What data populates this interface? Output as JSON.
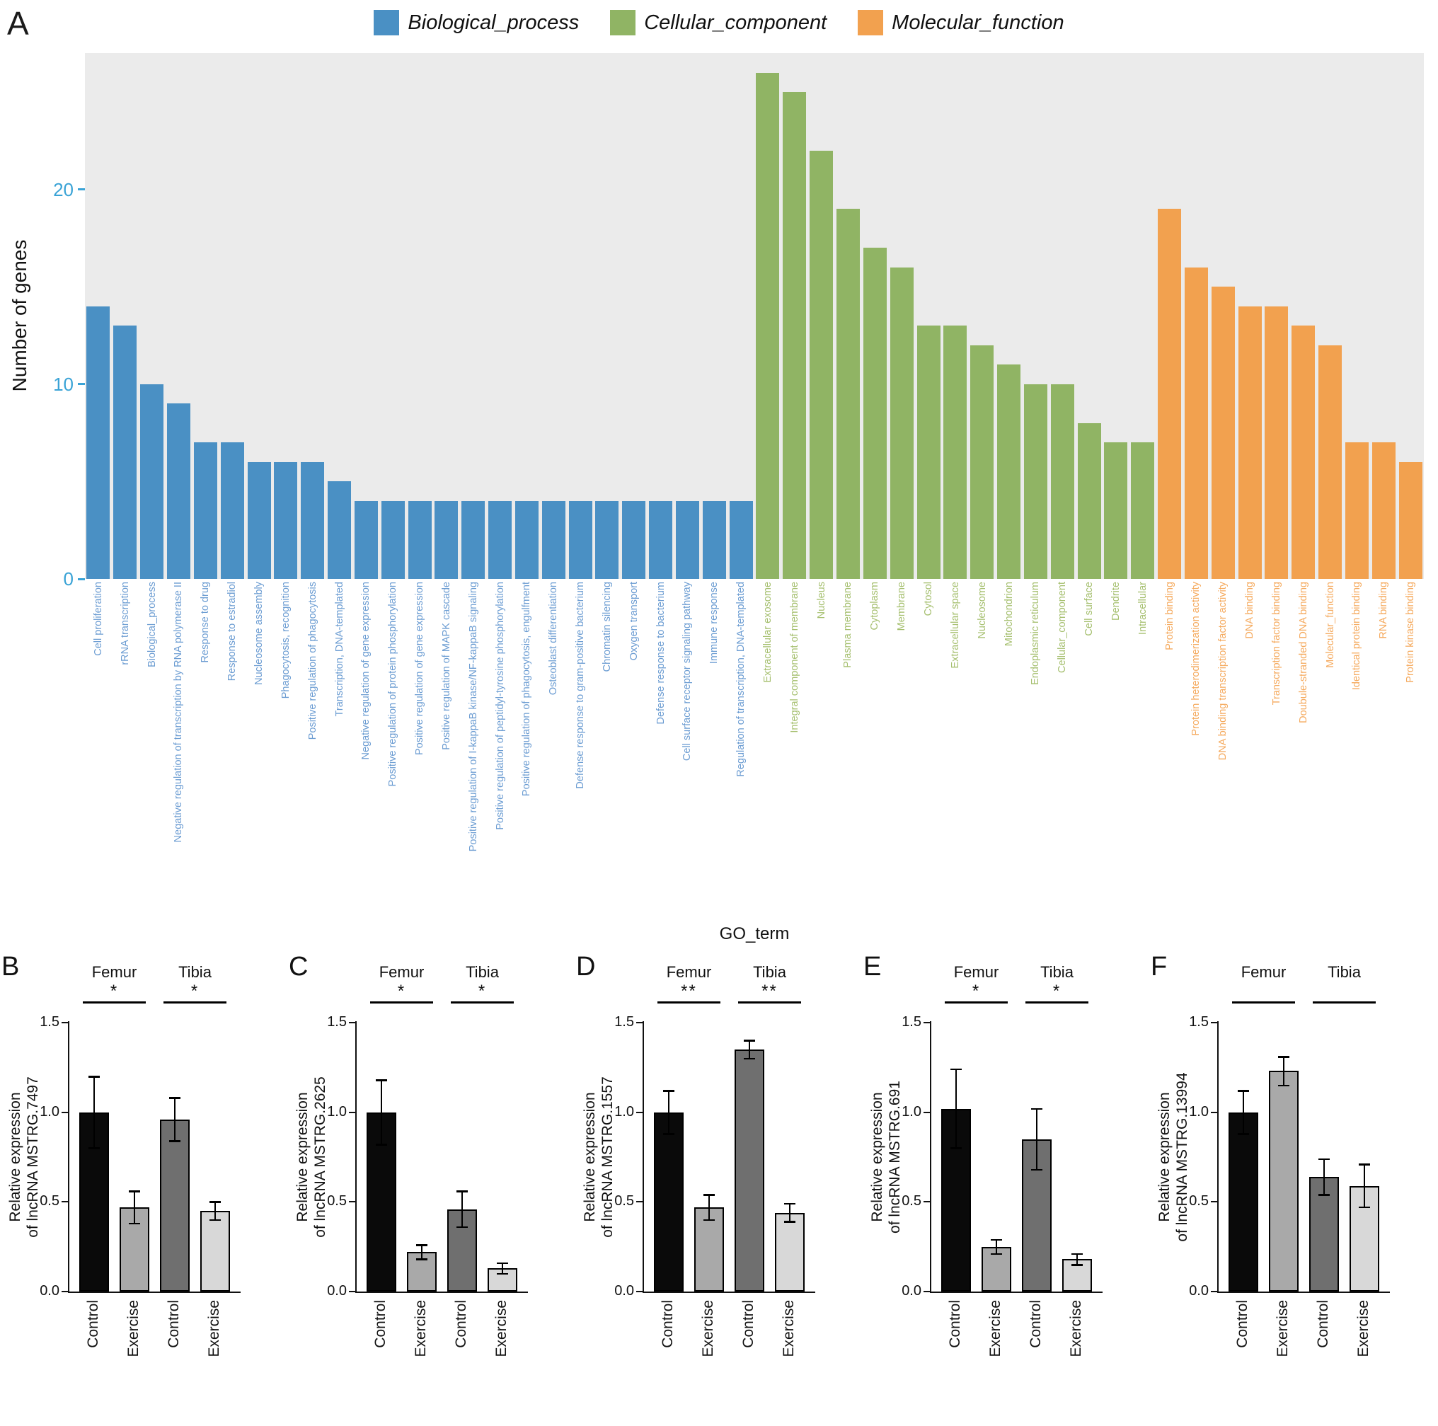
{
  "chart_data": [
    {
      "type": "bar",
      "panel_letter": "A",
      "ylabel": "Number of genes",
      "xlabel": "GO_term",
      "ylim": [
        0,
        27
      ],
      "yticks": [
        0,
        10,
        20
      ],
      "ytick_labels": [
        "0",
        "10",
        "20"
      ],
      "legend_position": "top-center",
      "grid": false,
      "plot_background": "#ebebeb",
      "ytick_color": "#3aa3d6",
      "groups": [
        {
          "name": "Biological_process",
          "bar_color": "#4a90c4",
          "label_color": "#6b9cd2",
          "items": [
            {
              "label": "Cell proliferation",
              "value": 14
            },
            {
              "label": "rRNA transcription",
              "value": 13
            },
            {
              "label": "Biological_process",
              "value": 10
            },
            {
              "label": "Negative regulation of transcription by RNA polymerase II",
              "value": 9
            },
            {
              "label": "Response to drug",
              "value": 7
            },
            {
              "label": "Response to estradiol",
              "value": 7
            },
            {
              "label": "Nucleosome assembly",
              "value": 6
            },
            {
              "label": "Phagocytosis, recognition",
              "value": 6
            },
            {
              "label": "Positive regulation of phagocytosis",
              "value": 6
            },
            {
              "label": "Transcription, DNA-templated",
              "value": 5
            },
            {
              "label": "Negative regulation of gene expression",
              "value": 4
            },
            {
              "label": "Positive regulation of protein phosphorylation",
              "value": 4
            },
            {
              "label": "Positive regulation of gene expression",
              "value": 4
            },
            {
              "label": "Positive regulation of MAPK cascade",
              "value": 4
            },
            {
              "label": "Positive regulation of I-kappaB kinase/NF-kappaB signaling",
              "value": 4
            },
            {
              "label": "Positive regulation of peptidyl-tyrosine phosphorylation",
              "value": 4
            },
            {
              "label": "Positive regulation of phagocytosis, engulfment",
              "value": 4
            },
            {
              "label": "Osteoblast differentiation",
              "value": 4
            },
            {
              "label": "Defense response to gram-positive bacterium",
              "value": 4
            },
            {
              "label": "Chromatin silencing",
              "value": 4
            },
            {
              "label": "Oxygen transport",
              "value": 4
            },
            {
              "label": "Defense response to bacterium",
              "value": 4
            },
            {
              "label": "Cell surface receptor signaling pathway",
              "value": 4
            },
            {
              "label": "Immune response",
              "value": 4
            },
            {
              "label": "Regulation of transcription, DNA-templated",
              "value": 4
            }
          ]
        },
        {
          "name": "Cellular_component",
          "bar_color": "#90b464",
          "label_color": "#a5bf6e",
          "items": [
            {
              "label": "Extracellular exosome",
              "value": 26
            },
            {
              "label": "Integral component of membrane",
              "value": 25
            },
            {
              "label": "Nucleus",
              "value": 22
            },
            {
              "label": "Plasma membrane",
              "value": 19
            },
            {
              "label": "Cytoplasm",
              "value": 17
            },
            {
              "label": "Membrane",
              "value": 16
            },
            {
              "label": "Cytosol",
              "value": 13
            },
            {
              "label": "Extracellular space",
              "value": 13
            },
            {
              "label": "Nucleosome",
              "value": 12
            },
            {
              "label": "Mitochondrion",
              "value": 11
            },
            {
              "label": "Endoplasmic reticulum",
              "value": 10
            },
            {
              "label": "Cellular_component",
              "value": 10
            },
            {
              "label": "Cell surface",
              "value": 8
            },
            {
              "label": "Dendrite",
              "value": 7
            },
            {
              "label": "Intracellular",
              "value": 7
            }
          ]
        },
        {
          "name": "Molecular_function",
          "bar_color": "#f2a14f",
          "label_color": "#f5aa5e",
          "items": [
            {
              "label": "Protein binding",
              "value": 19
            },
            {
              "label": "Protein heterodimerization activity",
              "value": 16
            },
            {
              "label": "DNA binding transcription factor activity",
              "value": 15
            },
            {
              "label": "DNA binding",
              "value": 14
            },
            {
              "label": "Transcription factor binding",
              "value": 14
            },
            {
              "label": "Doubule-stranded DNA binding",
              "value": 13
            },
            {
              "label": "Molecular_function",
              "value": 12
            },
            {
              "label": "Identical protein binding",
              "value": 7
            },
            {
              "label": "RNA binding",
              "value": 7
            },
            {
              "label": "Protein kinase binding",
              "value": 6
            }
          ]
        }
      ]
    },
    {
      "type": "bar",
      "panel_letter": "B",
      "ylabel_lines": [
        "Relative expression",
        "of lncRNA MSTRG.7497"
      ],
      "ylim": [
        0,
        1.5
      ],
      "ytick_labels": [
        "0.0",
        "0.5",
        "1.0",
        "1.5"
      ],
      "group_labels": [
        "Femur",
        "Tibia"
      ],
      "significance": [
        "*",
        "*"
      ],
      "categories": [
        "Control",
        "Exercise",
        "Control",
        "Exercise"
      ],
      "values": [
        1.0,
        0.47,
        0.96,
        0.45
      ],
      "errors": [
        0.2,
        0.09,
        0.12,
        0.05
      ],
      "bar_colors": [
        "#0a0a0a",
        "#a9a9a9",
        "#6f6f6f",
        "#d8d8d8"
      ]
    },
    {
      "type": "bar",
      "panel_letter": "C",
      "ylabel_lines": [
        "Relative expression",
        "of lncRNA MSTRG.2625"
      ],
      "ylim": [
        0,
        1.5
      ],
      "ytick_labels": [
        "0.0",
        "0.5",
        "1.0",
        "1.5"
      ],
      "group_labels": [
        "Femur",
        "Tibia"
      ],
      "significance": [
        "*",
        "*"
      ],
      "categories": [
        "Control",
        "Exercise",
        "Control",
        "Exercise"
      ],
      "values": [
        1.0,
        0.22,
        0.46,
        0.13
      ],
      "errors": [
        0.18,
        0.04,
        0.1,
        0.03
      ],
      "bar_colors": [
        "#0a0a0a",
        "#a9a9a9",
        "#6f6f6f",
        "#d8d8d8"
      ]
    },
    {
      "type": "bar",
      "panel_letter": "D",
      "ylabel_lines": [
        "Relative expression",
        "of lncRNA MSTRG.1557"
      ],
      "ylim": [
        0,
        1.5
      ],
      "ytick_labels": [
        "0.0",
        "0.5",
        "1.0",
        "1.5"
      ],
      "group_labels": [
        "Femur",
        "Tibia"
      ],
      "significance": [
        "**",
        "**"
      ],
      "categories": [
        "Control",
        "Exercise",
        "Control",
        "Exercise"
      ],
      "values": [
        1.0,
        0.47,
        1.35,
        0.44
      ],
      "errors": [
        0.12,
        0.07,
        0.05,
        0.05
      ],
      "bar_colors": [
        "#0a0a0a",
        "#a9a9a9",
        "#6f6f6f",
        "#d8d8d8"
      ]
    },
    {
      "type": "bar",
      "panel_letter": "E",
      "ylabel_lines": [
        "Relative expression",
        "of lncRNA MSTRG.691"
      ],
      "ylim": [
        0,
        1.5
      ],
      "ytick_labels": [
        "0.0",
        "0.5",
        "1.0",
        "1.5"
      ],
      "group_labels": [
        "Femur",
        "Tibia"
      ],
      "significance": [
        "*",
        "*"
      ],
      "categories": [
        "Control",
        "Exercise",
        "Control",
        "Exercise"
      ],
      "values": [
        1.02,
        0.25,
        0.85,
        0.18
      ],
      "errors": [
        0.22,
        0.04,
        0.17,
        0.03
      ],
      "bar_colors": [
        "#0a0a0a",
        "#a9a9a9",
        "#6f6f6f",
        "#d8d8d8"
      ]
    },
    {
      "type": "bar",
      "panel_letter": "F",
      "ylabel_lines": [
        "Relative expression",
        "of lncRNA MSTRG.13994"
      ],
      "ylim": [
        0,
        1.5
      ],
      "ytick_labels": [
        "0.0",
        "0.5",
        "1.0",
        "1.5"
      ],
      "group_labels": [
        "Femur",
        "Tibia"
      ],
      "significance": [
        "",
        ""
      ],
      "categories": [
        "Control",
        "Exercise",
        "Control",
        "Exercise"
      ],
      "values": [
        1.0,
        1.23,
        0.64,
        0.59
      ],
      "errors": [
        0.12,
        0.08,
        0.1,
        0.12
      ],
      "bar_colors": [
        "#0a0a0a",
        "#a9a9a9",
        "#6f6f6f",
        "#d8d8d8"
      ]
    }
  ]
}
